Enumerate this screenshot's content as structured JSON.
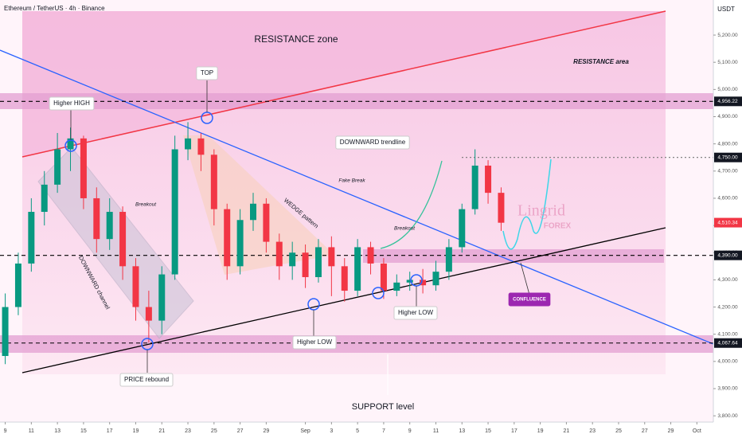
{
  "chart_data": {
    "type": "candlestick",
    "title": "Ethereum / TetherUS · 4h · Binance",
    "unit": "USDT",
    "up_color": "#089981",
    "down_color": "#f23645",
    "x": [
      0,
      1,
      2,
      3,
      4,
      5,
      6,
      7,
      8,
      9,
      10,
      11,
      12,
      13,
      14,
      15,
      16,
      17,
      18,
      19,
      20,
      21,
      22,
      23,
      24,
      25,
      26,
      27,
      28,
      29,
      30,
      31,
      32,
      33,
      34,
      35,
      36,
      37,
      38
    ],
    "open": [
      4020,
      4200,
      4360,
      4550,
      4650,
      4780,
      4820,
      4600,
      4450,
      4550,
      4350,
      4200,
      4150,
      4320,
      4780,
      4820,
      4760,
      4560,
      4350,
      4520,
      4580,
      4440,
      4350,
      4400,
      4310,
      4420,
      4350,
      4260,
      4420,
      4360,
      4260,
      4290,
      4300,
      4280,
      4330,
      4420,
      4560,
      4720,
      4620
    ],
    "high": [
      4250,
      4400,
      4600,
      4700,
      4840,
      4860,
      4830,
      4640,
      4600,
      4570,
      4380,
      4260,
      4350,
      4830,
      4880,
      4840,
      4780,
      4580,
      4560,
      4620,
      4600,
      4470,
      4440,
      4430,
      4450,
      4460,
      4380,
      4450,
      4440,
      4380,
      4320,
      4330,
      4340,
      4370,
      4450,
      4580,
      4780,
      4740,
      4640
    ],
    "low": [
      3990,
      4170,
      4330,
      4500,
      4620,
      4700,
      4560,
      4400,
      4410,
      4300,
      4150,
      4070,
      4100,
      4300,
      4740,
      4700,
      4500,
      4300,
      4320,
      4480,
      4400,
      4300,
      4300,
      4270,
      4290,
      4240,
      4220,
      4240,
      4320,
      4230,
      4240,
      4260,
      4250,
      4260,
      4300,
      4400,
      4540,
      4580,
      4480
    ],
    "close": [
      4200,
      4360,
      4550,
      4650,
      4780,
      4820,
      4600,
      4450,
      4550,
      4350,
      4200,
      4150,
      4320,
      4780,
      4820,
      4760,
      4560,
      4350,
      4520,
      4580,
      4440,
      4350,
      4400,
      4310,
      4420,
      4350,
      4260,
      4420,
      4360,
      4260,
      4290,
      4300,
      4280,
      4330,
      4420,
      4560,
      4720,
      4620,
      4510
    ],
    "xlim": [
      -0.4,
      54.2
    ],
    "ylim": [
      3777,
      5329
    ],
    "xticks": [
      {
        "value": 0,
        "label": "9"
      },
      {
        "value": 2,
        "label": "11"
      },
      {
        "value": 4,
        "label": "13"
      },
      {
        "value": 6,
        "label": "15"
      },
      {
        "value": 8,
        "label": "17"
      },
      {
        "value": 10,
        "label": "19"
      },
      {
        "value": 12,
        "label": "21"
      },
      {
        "value": 14,
        "label": "23"
      },
      {
        "value": 16,
        "label": "25"
      },
      {
        "value": 18,
        "label": "27"
      },
      {
        "value": 20,
        "label": "29"
      },
      {
        "value": 23,
        "label": "Sep"
      },
      {
        "value": 25,
        "label": "3"
      },
      {
        "value": 27,
        "label": "5"
      },
      {
        "value": 29,
        "label": "7"
      },
      {
        "value": 31,
        "label": "9"
      },
      {
        "value": 33,
        "label": "11"
      },
      {
        "value": 35,
        "label": "13"
      },
      {
        "value": 37,
        "label": "15"
      },
      {
        "value": 39,
        "label": "17"
      },
      {
        "value": 41,
        "label": "19"
      },
      {
        "value": 43,
        "label": "21"
      },
      {
        "value": 45,
        "label": "23"
      },
      {
        "value": 47,
        "label": "25"
      },
      {
        "value": 49,
        "label": "27"
      },
      {
        "value": 51,
        "label": "29"
      },
      {
        "value": 53,
        "label": "Oct"
      }
    ],
    "yticks": [
      {
        "value": 3800,
        "label": "3,800.00"
      },
      {
        "value": 3900,
        "label": "3,900.00"
      },
      {
        "value": 4000,
        "label": "4,000.00"
      },
      {
        "value": 4100,
        "label": "4,100.00"
      },
      {
        "value": 4200,
        "label": "4,200.00"
      },
      {
        "value": 4300,
        "label": "4,300.00"
      },
      {
        "value": 4400,
        "label": "4,400.00"
      },
      {
        "value": 4500,
        "label": "4,500.00"
      },
      {
        "value": 4600,
        "label": "4,600.00"
      },
      {
        "value": 4700,
        "label": "4,700.00"
      },
      {
        "value": 4800,
        "label": "4,800.00"
      },
      {
        "value": 4900,
        "label": "4,900.00"
      },
      {
        "value": 5000,
        "label": "5,000.00"
      },
      {
        "value": 5100,
        "label": "5,100.00"
      },
      {
        "value": 5200,
        "label": "5,200.00"
      }
    ],
    "levels": [
      {
        "value": 4956.22,
        "label": "4,956.22"
      },
      {
        "value": 4750,
        "label": "4,750.00"
      },
      {
        "value": 4390,
        "label": "4,390.00"
      },
      {
        "value": 4067.64,
        "label": "4,067.64"
      }
    ],
    "last_price": {
      "value": 4510.34,
      "label": "4,510.34"
    },
    "annotations": [
      "RESISTANCE zone",
      "RESISTANCE area",
      "TOP",
      "Higher HIGH",
      "DOWNWARD trendline",
      "Fake Break",
      "Breakout",
      "Breakout",
      "WEDGE pattern",
      "DOWNWARD channel",
      "Higher LOW",
      "Higher LOW",
      "PRICE rebound",
      "SUPPORT level",
      "CONFLUENCE",
      "Lingrid",
      "FOREX"
    ]
  }
}
